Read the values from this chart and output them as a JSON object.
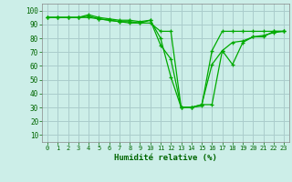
{
  "xlabel": "Humidité relative (%)",
  "background_color": "#cceee8",
  "grid_color": "#aacccc",
  "line_color": "#00aa00",
  "xlim": [
    -0.5,
    23.5
  ],
  "ylim": [
    5,
    105
  ],
  "yticks": [
    10,
    20,
    30,
    40,
    50,
    60,
    70,
    80,
    90,
    100
  ],
  "xticks": [
    0,
    1,
    2,
    3,
    4,
    5,
    6,
    7,
    8,
    9,
    10,
    11,
    12,
    13,
    14,
    15,
    16,
    17,
    18,
    19,
    20,
    21,
    22,
    23
  ],
  "series": [
    [
      95,
      95,
      95,
      95,
      97,
      95,
      94,
      93,
      93,
      92,
      93,
      75,
      65,
      30,
      30,
      32,
      32,
      71,
      61,
      77,
      81,
      81,
      85,
      85
    ],
    [
      95,
      95,
      95,
      95,
      95,
      94,
      93,
      92,
      91,
      91,
      91,
      85,
      85,
      30,
      30,
      32,
      61,
      71,
      77,
      78,
      81,
      82,
      84,
      85
    ],
    [
      95,
      95,
      95,
      95,
      96,
      94,
      93,
      92,
      92,
      91,
      93,
      80,
      52,
      30,
      30,
      31,
      71,
      85,
      85,
      85,
      85,
      85,
      85,
      85
    ]
  ]
}
